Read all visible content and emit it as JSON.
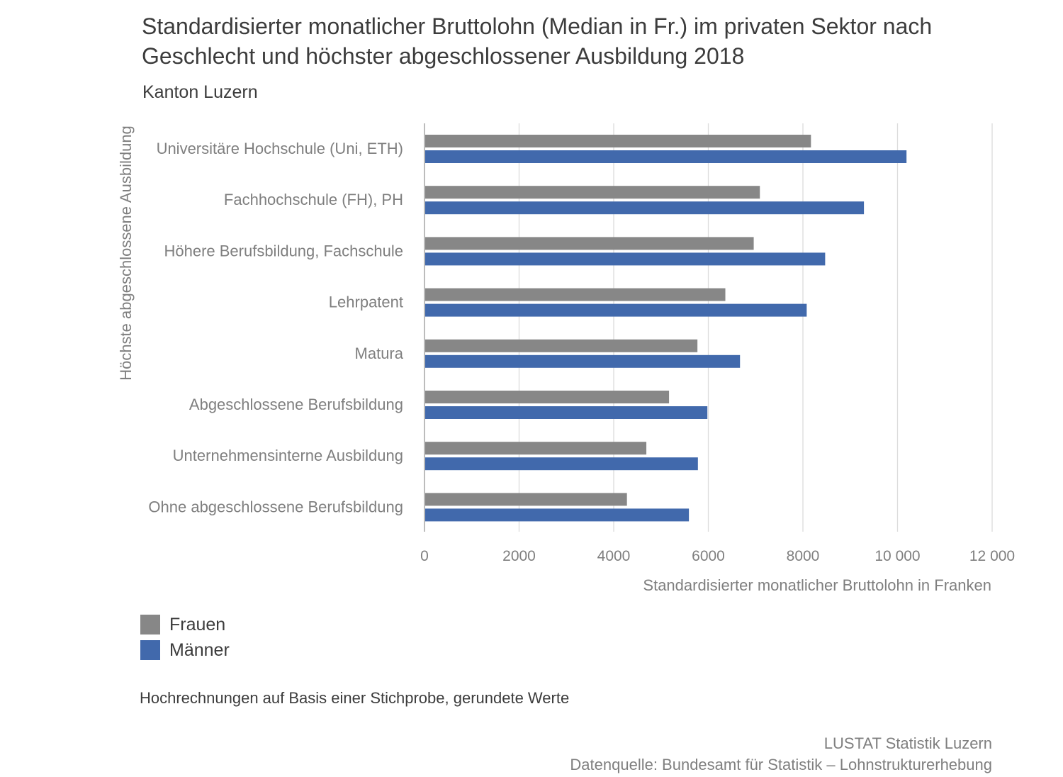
{
  "colors": {
    "frauen": "#878787",
    "maenner": "#4169ac",
    "grid": "#dcdcdc",
    "axis": "#a6a6a6",
    "label": "#7f7f7f",
    "text": "#3c3c3c"
  },
  "chart_data": {
    "type": "bar",
    "orientation": "horizontal",
    "title": "Standardisierter monatlicher Bruttolohn (Median in Fr.) im privaten Sektor nach Geschlecht und höchster abgeschlossener Ausbildung 2018",
    "subtitle": "Kanton Luzern",
    "xlabel": "Standardisierter monatlicher Bruttolohn in Franken",
    "ylabel": "Höchste abgeschlossene Ausbildung",
    "xlim": [
      0,
      12000
    ],
    "ticks": [
      {
        "value": 0,
        "label": "0"
      },
      {
        "value": 2000,
        "label": "2000"
      },
      {
        "value": 4000,
        "label": "4000"
      },
      {
        "value": 6000,
        "label": "6000"
      },
      {
        "value": 8000,
        "label": "8000"
      },
      {
        "value": 10000,
        "label": "10 000"
      },
      {
        "value": 12000,
        "label": "12 000"
      }
    ],
    "grid": true,
    "legend_position": "bottom-left",
    "categories": [
      "Universitäre Hochschule (Uni, ETH)",
      "Fachhochschule (FH), PH",
      "Höhere Berufsbildung, Fachschule",
      "Lehrpatent",
      "Matura",
      "Abgeschlossene Berufsbildung",
      "Unternehmensinterne Ausbildung",
      "Ohne abgeschlossene Berufsbildung"
    ],
    "series": [
      {
        "name": "Frauen",
        "key": "frauen",
        "values": [
          8170,
          7090,
          6960,
          6360,
          5770,
          5170,
          4690,
          4280
        ]
      },
      {
        "name": "Männer",
        "key": "maenner",
        "values": [
          10190,
          9290,
          8470,
          8080,
          6670,
          5980,
          5780,
          5590
        ]
      }
    ]
  },
  "note": "Hochrechnungen auf Basis einer Stichprobe, gerundete Werte",
  "source": {
    "publisher": "LUSTAT Statistik Luzern",
    "datasource": "Datenquelle: Bundesamt für Statistik – Lohnstrukturerhebung"
  }
}
